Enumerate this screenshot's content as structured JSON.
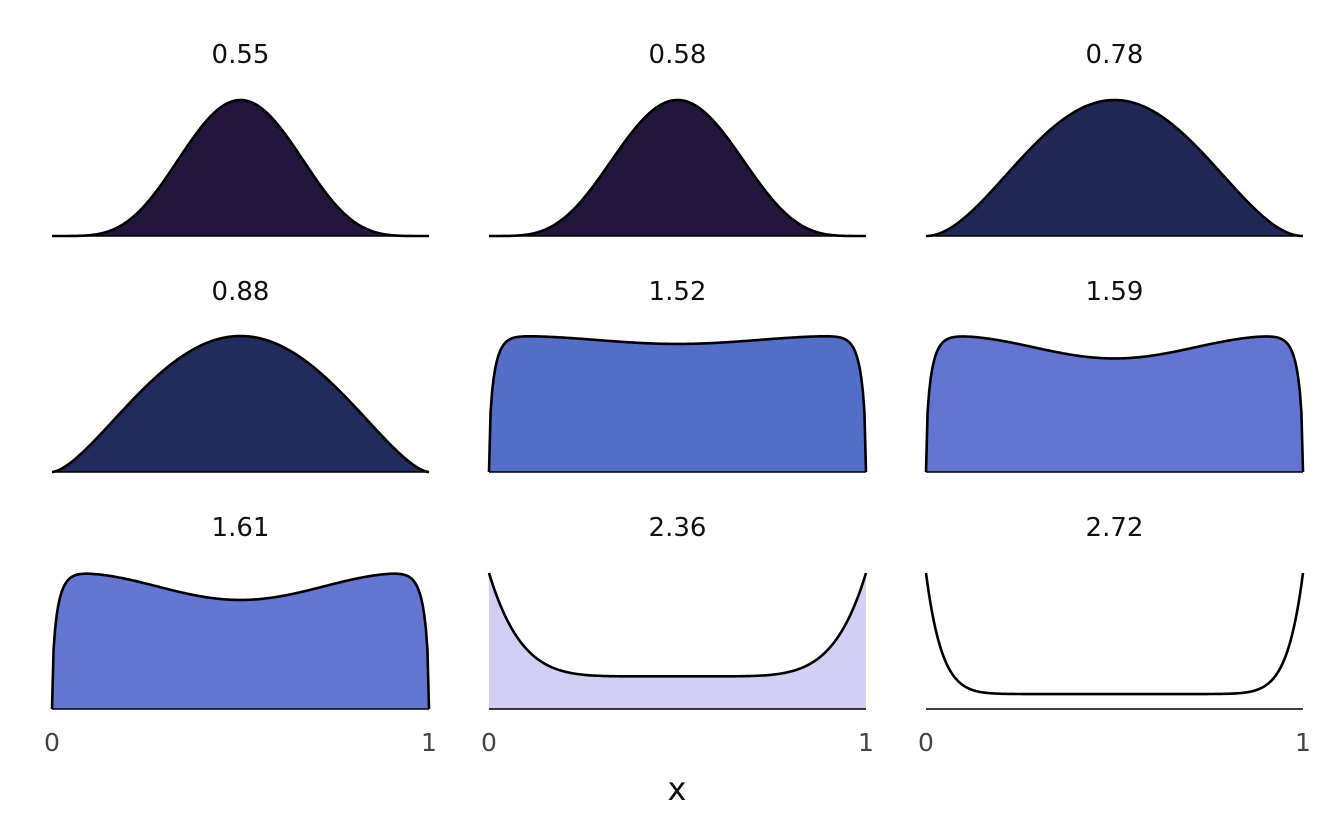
{
  "chart_data": {
    "type": "area",
    "xlabel": "x",
    "x_range": [
      0,
      1
    ],
    "x_tick_labels": [
      "0",
      "1"
    ],
    "grid": false,
    "panels": [
      {
        "title": "0.55",
        "fill": "#22163d",
        "shape": "bell",
        "a": 6.0,
        "b": 6.0
      },
      {
        "title": "0.58",
        "fill": "#22163d",
        "shape": "bell",
        "a": 5.5,
        "b": 5.5
      },
      {
        "title": "0.78",
        "fill": "#1f2856",
        "shape": "bell",
        "a": 3.0,
        "b": 3.0
      },
      {
        "title": "0.88",
        "fill": "#1f2c5c",
        "shape": "bell",
        "a": 2.6,
        "b": 2.6
      },
      {
        "title": "1.52",
        "fill": "#546dc7",
        "shape": "plateau",
        "dip": 0.03,
        "bumps": 0.86
      },
      {
        "title": "1.59",
        "fill": "#6375d0",
        "shape": "plateau",
        "dip": 0.09,
        "bumps": 0.86
      },
      {
        "title": "1.61",
        "fill": "#6376d0",
        "shape": "plateau",
        "dip": 0.11,
        "bumps": 0.88
      },
      {
        "title": "2.36",
        "fill": "#d3cff4",
        "shape": "ushape",
        "base": 0.24,
        "p": 6
      },
      {
        "title": "2.72",
        "fill": "#ffffff",
        "shape": "ushape",
        "base": 0.11,
        "p": 12
      }
    ]
  }
}
